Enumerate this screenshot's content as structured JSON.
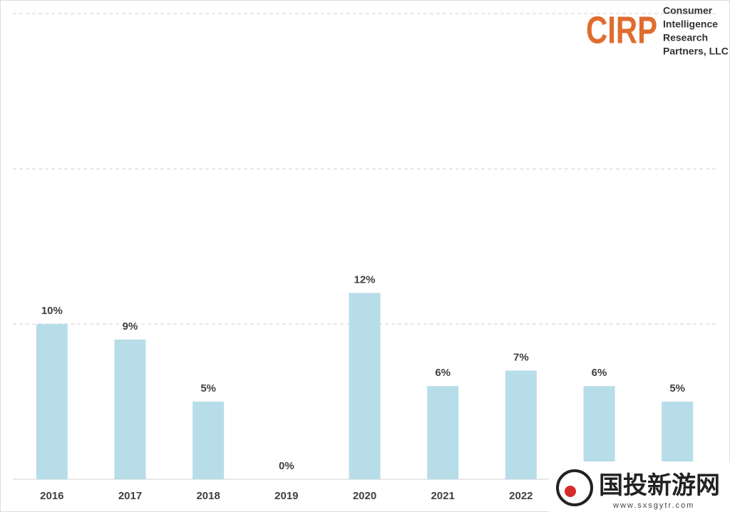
{
  "chart_data": {
    "type": "bar",
    "categories": [
      "2016",
      "2017",
      "2018",
      "2019",
      "2020",
      "2021",
      "2022",
      null,
      null
    ],
    "values": [
      10,
      9,
      5,
      0,
      12,
      6,
      7,
      6,
      5
    ],
    "value_labels": [
      "10%",
      "9%",
      "5%",
      "0%",
      "12%",
      "6%",
      "7%",
      "6%",
      "5%"
    ],
    "color": "#b7dde8",
    "ylim": [
      0,
      30
    ],
    "gridlines": [
      10,
      20,
      30
    ],
    "grid": true
  },
  "logo": {
    "mark": "CIRP",
    "lines": [
      "Consumer",
      "Intelligence",
      "Research",
      "Partners, LLC"
    ]
  },
  "watermark": {
    "title": "国投新游网",
    "url": "www.sxsgytr.com"
  }
}
